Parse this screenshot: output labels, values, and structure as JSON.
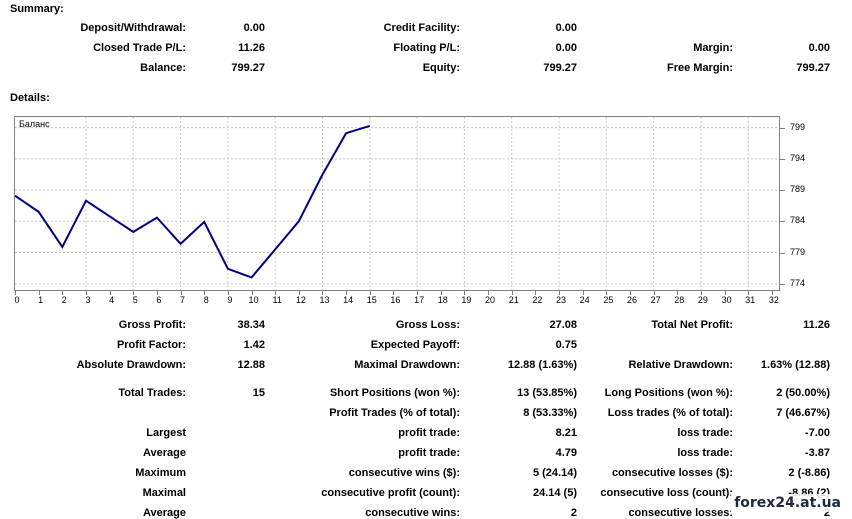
{
  "summary": {
    "title": "Summary:",
    "rows": [
      [
        {
          "label": "Deposit/Withdrawal:",
          "value": "0.00"
        },
        {
          "label": "Credit Facility:",
          "value": "0.00"
        },
        {
          "label": "",
          "value": ""
        }
      ],
      [
        {
          "label": "Closed Trade P/L:",
          "value": "11.26"
        },
        {
          "label": "Floating P/L:",
          "value": "0.00"
        },
        {
          "label": "Margin:",
          "value": "0.00"
        }
      ],
      [
        {
          "label": "Balance:",
          "value": "799.27"
        },
        {
          "label": "Equity:",
          "value": "799.27"
        },
        {
          "label": "Free Margin:",
          "value": "799.27"
        }
      ]
    ]
  },
  "details": {
    "title": "Details:"
  },
  "chart_data": {
    "type": "line",
    "title": "Баланс",
    "x": [
      0,
      1,
      2,
      3,
      4,
      5,
      6,
      7,
      8,
      9,
      10,
      11,
      12,
      13,
      14,
      15
    ],
    "series": [
      {
        "values": [
          788.1,
          785.5,
          779.9,
          787.3,
          784.8,
          782.3,
          784.6,
          780.4,
          783.9,
          776.4,
          775.0,
          779.5,
          784.0,
          791.5,
          798.1,
          799.27
        ]
      }
    ],
    "x_ticks": [
      "0",
      "1",
      "2",
      "3",
      "4",
      "5",
      "6",
      "7",
      "8",
      "9",
      "10",
      "11",
      "12",
      "13",
      "14",
      "15",
      "16",
      "17",
      "18",
      "19",
      "20",
      "21",
      "22",
      "23",
      "24",
      "25",
      "26",
      "27",
      "28",
      "29",
      "30",
      "31",
      "32"
    ],
    "y_ticks": [
      "799",
      "794",
      "789",
      "784",
      "779",
      "774"
    ],
    "xlim": [
      0,
      32.3
    ],
    "ylim": [
      773,
      800.7
    ],
    "grid": true,
    "line_color": "#000080"
  },
  "stats": {
    "row1": [
      {
        "label": "Gross Profit:",
        "value": "38.34"
      },
      {
        "label": "Gross Loss:",
        "value": "27.08"
      },
      {
        "label": "Total Net Profit:",
        "value": "11.26"
      }
    ],
    "row2": [
      {
        "label": "Profit Factor:",
        "value": "1.42"
      },
      {
        "label": "Expected Payoff:",
        "value": "0.75"
      },
      {
        "label": "",
        "value": ""
      }
    ],
    "row3": [
      {
        "label": "Absolute Drawdown:",
        "value": "12.88"
      },
      {
        "label": "Maximal Drawdown:",
        "value": "12.88 (1.63%)"
      },
      {
        "label": "Relative Drawdown:",
        "value": "1.63% (12.88)"
      }
    ],
    "row4": [
      {
        "label": "Total Trades:",
        "value": "15"
      },
      {
        "label": "Short Positions (won %):",
        "value": "13 (53.85%)"
      },
      {
        "label": "Long Positions (won %):",
        "value": "2 (50.00%)"
      }
    ],
    "row5": [
      {
        "label": "",
        "value": ""
      },
      {
        "label": "Profit Trades (% of total):",
        "value": "8 (53.33%)"
      },
      {
        "label": "Loss trades (% of total):",
        "value": "7 (46.67%)"
      }
    ],
    "row6": [
      {
        "label": "Largest",
        "value": ""
      },
      {
        "label": "profit trade:",
        "value": "8.21"
      },
      {
        "label": "loss trade:",
        "value": "-7.00"
      }
    ],
    "row7": [
      {
        "label": "Average",
        "value": ""
      },
      {
        "label": "profit trade:",
        "value": "4.79"
      },
      {
        "label": "loss trade:",
        "value": "-3.87"
      }
    ],
    "row8": [
      {
        "label": "Maximum",
        "value": ""
      },
      {
        "label": "consecutive wins ($):",
        "value": "5 (24.14)"
      },
      {
        "label": "consecutive losses ($):",
        "value": "2 (-8.86)"
      }
    ],
    "row9": [
      {
        "label": "Maximal",
        "value": ""
      },
      {
        "label": "consecutive profit (count):",
        "value": "24.14 (5)"
      },
      {
        "label": "consecutive loss (count):",
        "value": "-8.86 (2)"
      }
    ],
    "row10": [
      {
        "label": "Average",
        "value": ""
      },
      {
        "label": "consecutive wins:",
        "value": "2"
      },
      {
        "label": "consecutive losses:",
        "value": "2"
      }
    ]
  },
  "watermark": "forex24.at.ua"
}
